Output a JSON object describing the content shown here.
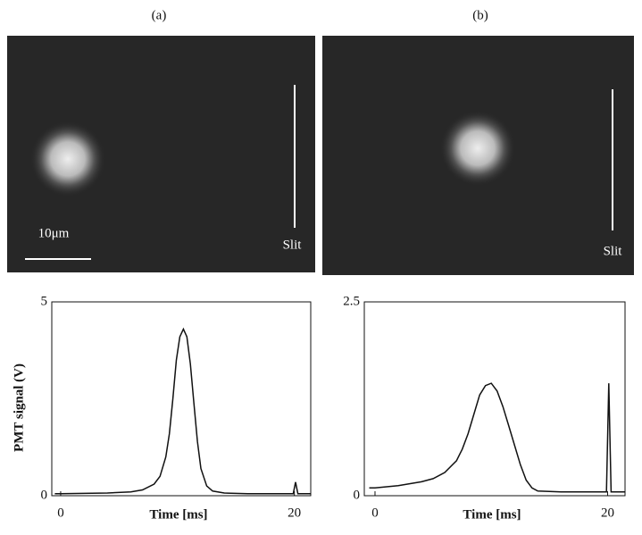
{
  "panel_labels": [
    "(a)",
    "(b)"
  ],
  "images": [
    {
      "scale_label": "10μm",
      "slit_label": "Slit"
    },
    {
      "slit_label": "Slit"
    }
  ],
  "chart_data": [
    {
      "type": "line",
      "ylabel": "PMT signal (V)",
      "xlabel": "Time [ms]",
      "xlim": [
        -0.76,
        21.4
      ],
      "ylim": [
        0,
        5
      ],
      "xticks": [
        0,
        20
      ],
      "yticks": [
        0,
        5
      ],
      "series": [
        {
          "color": "#111111",
          "x": [
            -0.5,
            0,
            2,
            4,
            6,
            7,
            8,
            8.5,
            9,
            9.3,
            9.6,
            9.9,
            10.2,
            10.5,
            10.8,
            11.1,
            11.4,
            11.7,
            12,
            12.5,
            13,
            14,
            16,
            18,
            19.9,
            20.1,
            20.3,
            20.5,
            21,
            21.4
          ],
          "values": [
            0.05,
            0.05,
            0.06,
            0.07,
            0.1,
            0.15,
            0.3,
            0.5,
            1.0,
            1.6,
            2.5,
            3.5,
            4.1,
            4.3,
            4.1,
            3.4,
            2.4,
            1.4,
            0.7,
            0.25,
            0.12,
            0.07,
            0.05,
            0.05,
            0.05,
            0.35,
            0.05,
            0.05,
            0.05,
            0.05
          ]
        }
      ]
    },
    {
      "type": "line",
      "xlabel": "Time [ms]",
      "xlim": [
        -0.92,
        21.5
      ],
      "ylim": [
        0,
        2.5
      ],
      "xticks": [
        0,
        20
      ],
      "yticks": [
        0,
        2.5
      ],
      "series": [
        {
          "color": "#111111",
          "x": [
            -0.5,
            0,
            2,
            4,
            5,
            6,
            7,
            7.5,
            8,
            8.5,
            9,
            9.5,
            10,
            10.5,
            11,
            11.5,
            12,
            12.5,
            13,
            13.5,
            14,
            16,
            18,
            19.9,
            20.1,
            20.3,
            20.5,
            21,
            21.5
          ],
          "values": [
            0.1,
            0.1,
            0.13,
            0.18,
            0.22,
            0.3,
            0.45,
            0.6,
            0.8,
            1.05,
            1.3,
            1.42,
            1.45,
            1.35,
            1.15,
            0.9,
            0.65,
            0.4,
            0.2,
            0.1,
            0.06,
            0.05,
            0.05,
            0.05,
            1.45,
            0.05,
            0.05,
            0.05,
            0.05
          ]
        }
      ]
    }
  ]
}
